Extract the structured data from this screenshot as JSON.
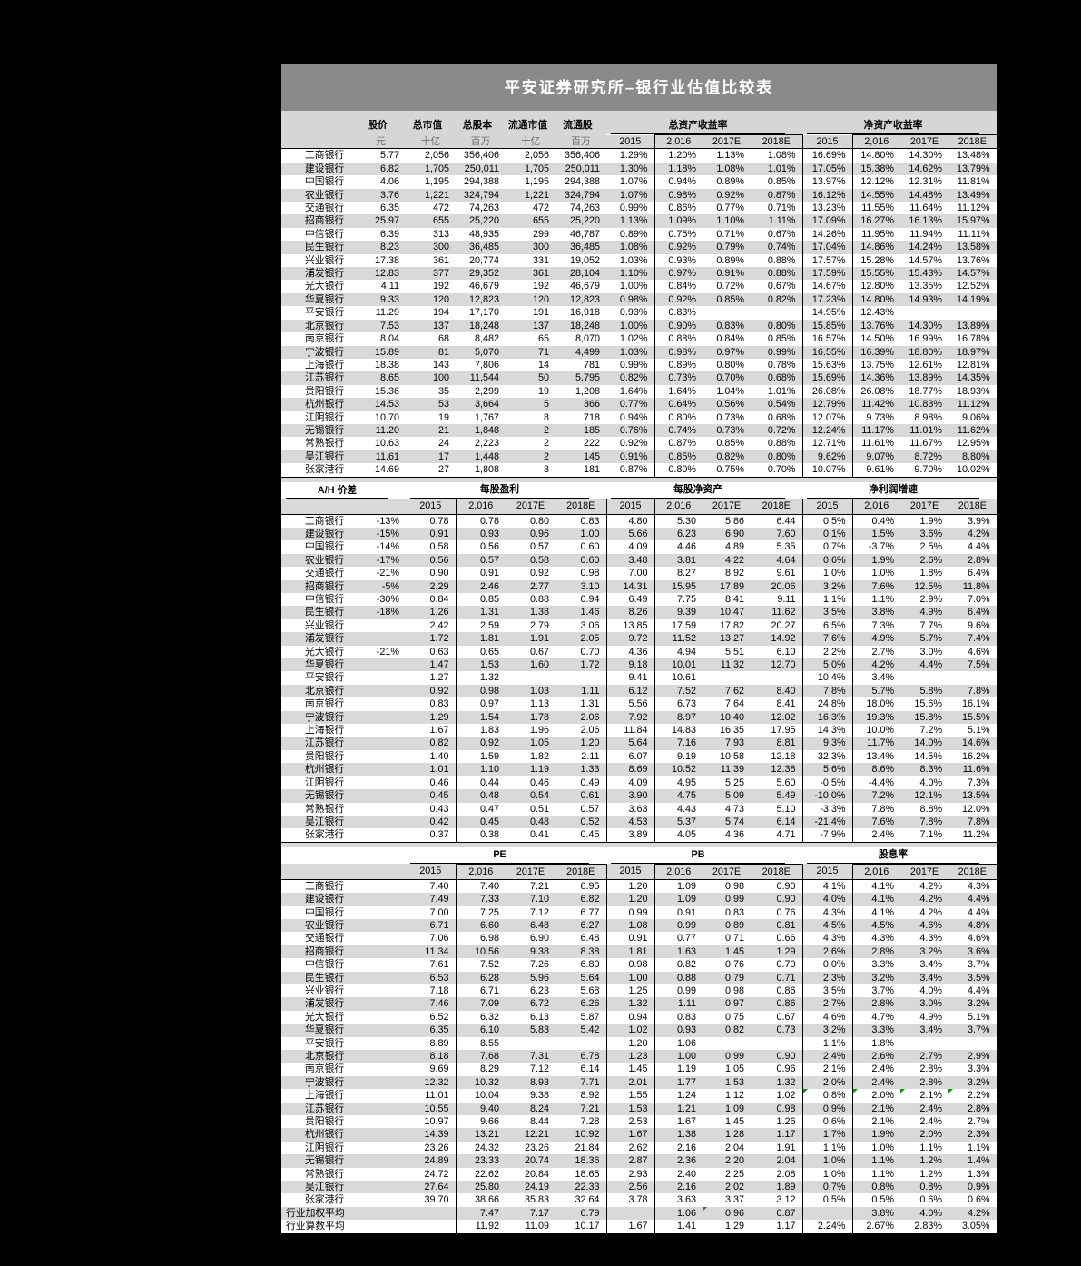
{
  "title": "平安证券研究所–银行业估值比较表",
  "years": [
    "2015",
    "2,016",
    "2017E",
    "2018E"
  ],
  "colors": {
    "title_bar": "#8a8a8a",
    "header_band": "#d6d6d6",
    "alt_row": "#d9d9d9",
    "frame": "#000000",
    "flag_green": "#1e8a1e"
  },
  "section1": {
    "col_headers": [
      "股价",
      "总市值",
      "总股本",
      "流通市值",
      "流通股"
    ],
    "units": [
      "元",
      "十亿",
      "百万",
      "十亿",
      "百万"
    ],
    "groups": [
      "总资产收益率",
      "净资产收益率"
    ],
    "rows": [
      [
        "工商银行",
        "5.77",
        "2,056",
        "356,406",
        "2,056",
        "356,406",
        "1.29%",
        "1.20%",
        "1.13%",
        "1.08%",
        "16.69%",
        "14.80%",
        "14.30%",
        "13.48%"
      ],
      [
        "建设银行",
        "6.82",
        "1,705",
        "250,011",
        "1,705",
        "250,011",
        "1.30%",
        "1.18%",
        "1.08%",
        "1.01%",
        "17.05%",
        "15.38%",
        "14.62%",
        "13.79%"
      ],
      [
        "中国银行",
        "4.06",
        "1,195",
        "294,388",
        "1,195",
        "294,388",
        "1.07%",
        "0.94%",
        "0.89%",
        "0.85%",
        "13.97%",
        "12.12%",
        "12.31%",
        "11.81%"
      ],
      [
        "农业银行",
        "3.76",
        "1,221",
        "324,794",
        "1,221",
        "324,794",
        "1.07%",
        "0.98%",
        "0.92%",
        "0.87%",
        "16.12%",
        "14.55%",
        "14.48%",
        "13.49%"
      ],
      [
        "交通银行",
        "6.35",
        "472",
        "74,263",
        "472",
        "74,263",
        "0.99%",
        "0.86%",
        "0.77%",
        "0.71%",
        "13.23%",
        "11.55%",
        "11.64%",
        "11.12%"
      ],
      [
        "招商银行",
        "25.97",
        "655",
        "25,220",
        "655",
        "25,220",
        "1.13%",
        "1.09%",
        "1.10%",
        "1.11%",
        "17.09%",
        "16.27%",
        "16.13%",
        "15.97%"
      ],
      [
        "中信银行",
        "6.39",
        "313",
        "48,935",
        "299",
        "46,787",
        "0.89%",
        "0.75%",
        "0.71%",
        "0.67%",
        "14.26%",
        "11.95%",
        "11.94%",
        "11.11%"
      ],
      [
        "民生银行",
        "8.23",
        "300",
        "36,485",
        "300",
        "36,485",
        "1.08%",
        "0.92%",
        "0.79%",
        "0.74%",
        "17.04%",
        "14.86%",
        "14.24%",
        "13.58%"
      ],
      [
        "兴业银行",
        "17.38",
        "361",
        "20,774",
        "331",
        "19,052",
        "1.03%",
        "0.93%",
        "0.89%",
        "0.88%",
        "17.57%",
        "15.28%",
        "14.57%",
        "13.76%"
      ],
      [
        "浦发银行",
        "12.83",
        "377",
        "29,352",
        "361",
        "28,104",
        "1.10%",
        "0.97%",
        "0.91%",
        "0.88%",
        "17.59%",
        "15.55%",
        "15.43%",
        "14.57%"
      ],
      [
        "光大银行",
        "4.11",
        "192",
        "46,679",
        "192",
        "46,679",
        "1.00%",
        "0.84%",
        "0.72%",
        "0.67%",
        "14.67%",
        "12.80%",
        "13.35%",
        "12.52%"
      ],
      [
        "华夏银行",
        "9.33",
        "120",
        "12,823",
        "120",
        "12,823",
        "0.98%",
        "0.92%",
        "0.85%",
        "0.82%",
        "17.23%",
        "14.80%",
        "14.93%",
        "14.19%"
      ],
      [
        "平安银行",
        "11.29",
        "194",
        "17,170",
        "191",
        "16,918",
        "0.93%",
        "0.83%",
        "",
        "",
        "14.95%",
        "12.43%",
        "",
        ""
      ],
      [
        "北京银行",
        "7.53",
        "137",
        "18,248",
        "137",
        "18,248",
        "1.00%",
        "0.90%",
        "0.83%",
        "0.80%",
        "15.85%",
        "13.76%",
        "14.30%",
        "13.89%"
      ],
      [
        "南京银行",
        "8.04",
        "68",
        "8,482",
        "65",
        "8,070",
        "1.02%",
        "0.88%",
        "0.84%",
        "0.85%",
        "16.57%",
        "14.50%",
        "16.99%",
        "16.78%"
      ],
      [
        "宁波银行",
        "15.89",
        "81",
        "5,070",
        "71",
        "4,499",
        "1.03%",
        "0.98%",
        "0.97%",
        "0.99%",
        "16.55%",
        "16.39%",
        "18.80%",
        "18.97%"
      ],
      [
        "上海银行",
        "18.38",
        "143",
        "7,806",
        "14",
        "781",
        "0.99%",
        "0.89%",
        "0.80%",
        "0.78%",
        "15.63%",
        "13.75%",
        "12.61%",
        "12.81%"
      ],
      [
        "江苏银行",
        "8.65",
        "100",
        "11,544",
        "50",
        "5,795",
        "0.82%",
        "0.73%",
        "0.70%",
        "0.68%",
        "15.69%",
        "14.36%",
        "13.89%",
        "14.35%"
      ],
      [
        "贵阳银行",
        "15.36",
        "35",
        "2,299",
        "19",
        "1,208",
        "1.64%",
        "1.64%",
        "1.04%",
        "1.01%",
        "26.08%",
        "26.08%",
        "18.77%",
        "18.93%"
      ],
      [
        "杭州银行",
        "14.53",
        "53",
        "3,664",
        "5",
        "366",
        "0.77%",
        "0.64%",
        "0.56%",
        "0.54%",
        "12.79%",
        "11.42%",
        "10.83%",
        "11.12%"
      ],
      [
        "江阴银行",
        "10.70",
        "19",
        "1,767",
        "8",
        "718",
        "0.94%",
        "0.80%",
        "0.73%",
        "0.68%",
        "12.07%",
        "9.73%",
        "8.98%",
        "9.06%"
      ],
      [
        "无锡银行",
        "11.20",
        "21",
        "1,848",
        "2",
        "185",
        "0.76%",
        "0.74%",
        "0.73%",
        "0.72%",
        "12.24%",
        "11.17%",
        "11.01%",
        "11.62%"
      ],
      [
        "常熟银行",
        "10.63",
        "24",
        "2,223",
        "2",
        "222",
        "0.92%",
        "0.87%",
        "0.85%",
        "0.88%",
        "12.71%",
        "11.61%",
        "11.67%",
        "12.95%"
      ],
      [
        "吴江银行",
        "11.61",
        "17",
        "1,448",
        "2",
        "145",
        "0.91%",
        "0.85%",
        "0.82%",
        "0.80%",
        "9.62%",
        "9.07%",
        "8.72%",
        "8.80%"
      ],
      [
        "张家港行",
        "14.69",
        "27",
        "1,808",
        "3",
        "181",
        "0.87%",
        "0.80%",
        "0.75%",
        "0.70%",
        "10.07%",
        "9.61%",
        "9.70%",
        "10.02%"
      ]
    ]
  },
  "section2": {
    "groups": [
      "A/H 价差",
      "每股盈利",
      "每股净资产",
      "净利润增速"
    ],
    "rows": [
      [
        "工商银行",
        "-13%",
        "0.78",
        "0.78",
        "0.80",
        "0.83",
        "4.80",
        "5.30",
        "5.86",
        "6.44",
        "0.5%",
        "0.4%",
        "1.9%",
        "3.9%"
      ],
      [
        "建设银行",
        "-15%",
        "0.91",
        "0.93",
        "0.96",
        "1.00",
        "5.66",
        "6.23",
        "6.90",
        "7.60",
        "0.1%",
        "1.5%",
        "3.6%",
        "4.2%"
      ],
      [
        "中国银行",
        "-14%",
        "0.58",
        "0.56",
        "0.57",
        "0.60",
        "4.09",
        "4.46",
        "4.89",
        "5.35",
        "0.7%",
        "-3.7%",
        "2.5%",
        "4.4%"
      ],
      [
        "农业银行",
        "-17%",
        "0.56",
        "0.57",
        "0.58",
        "0.60",
        "3.48",
        "3.81",
        "4.22",
        "4.64",
        "0.6%",
        "1.9%",
        "2.6%",
        "2.8%"
      ],
      [
        "交通银行",
        "-21%",
        "0.90",
        "0.91",
        "0.92",
        "0.98",
        "7.00",
        "8.27",
        "8.92",
        "9.61",
        "1.0%",
        "1.0%",
        "1.8%",
        "6.4%"
      ],
      [
        "招商银行",
        "-5%",
        "2.29",
        "2.46",
        "2.77",
        "3.10",
        "14.31",
        "15.95",
        "17.89",
        "20.06",
        "3.2%",
        "7.6%",
        "12.5%",
        "11.8%"
      ],
      [
        "中信银行",
        "-30%",
        "0.84",
        "0.85",
        "0.88",
        "0.94",
        "6.49",
        "7.75",
        "8.41",
        "9.11",
        "1.1%",
        "1.1%",
        "2.9%",
        "7.0%"
      ],
      [
        "民生银行",
        "-18%",
        "1.26",
        "1.31",
        "1.38",
        "1.46",
        "8.26",
        "9.39",
        "10.47",
        "11.62",
        "3.5%",
        "3.8%",
        "4.9%",
        "6.4%"
      ],
      [
        "兴业银行",
        "",
        "2.42",
        "2.59",
        "2.79",
        "3.06",
        "13.85",
        "17.59",
        "17.82",
        "20.27",
        "6.5%",
        "7.3%",
        "7.7%",
        "9.6%"
      ],
      [
        "浦发银行",
        "",
        "1.72",
        "1.81",
        "1.91",
        "2.05",
        "9.72",
        "11.52",
        "13.27",
        "14.92",
        "7.6%",
        "4.9%",
        "5.7%",
        "7.4%"
      ],
      [
        "光大银行",
        "-21%",
        "0.63",
        "0.65",
        "0.67",
        "0.70",
        "4.36",
        "4.94",
        "5.51",
        "6.10",
        "2.2%",
        "2.7%",
        "3.0%",
        "4.6%"
      ],
      [
        "华夏银行",
        "",
        "1.47",
        "1.53",
        "1.60",
        "1.72",
        "9.18",
        "10.01",
        "11.32",
        "12.70",
        "5.0%",
        "4.2%",
        "4.4%",
        "7.5%"
      ],
      [
        "平安银行",
        "",
        "1.27",
        "1.32",
        "",
        "",
        "9.41",
        "10.61",
        "",
        "",
        "10.4%",
        "3.4%",
        "",
        ""
      ],
      [
        "北京银行",
        "",
        "0.92",
        "0.98",
        "1.03",
        "1.11",
        "6.12",
        "7.52",
        "7.62",
        "8.40",
        "7.8%",
        "5.7%",
        "5.8%",
        "7.8%"
      ],
      [
        "南京银行",
        "",
        "0.83",
        "0.97",
        "1.13",
        "1.31",
        "5.56",
        "6.73",
        "7.64",
        "8.41",
        "24.8%",
        "18.0%",
        "15.6%",
        "16.1%"
      ],
      [
        "宁波银行",
        "",
        "1.29",
        "1.54",
        "1.78",
        "2.06",
        "7.92",
        "8.97",
        "10.40",
        "12.02",
        "16.3%",
        "19.3%",
        "15.8%",
        "15.5%"
      ],
      [
        "上海银行",
        "",
        "1.67",
        "1.83",
        "1.96",
        "2.06",
        "11.84",
        "14.83",
        "16.35",
        "17.95",
        "14.3%",
        "10.0%",
        "7.2%",
        "5.1%"
      ],
      [
        "江苏银行",
        "",
        "0.82",
        "0.92",
        "1.05",
        "1.20",
        "5.64",
        "7.16",
        "7.93",
        "8.81",
        "9.3%",
        "11.7%",
        "14.0%",
        "14.6%"
      ],
      [
        "贵阳银行",
        "",
        "1.40",
        "1.59",
        "1.82",
        "2.11",
        "6.07",
        "9.19",
        "10.58",
        "12.18",
        "32.3%",
        "13.4%",
        "14.5%",
        "16.2%"
      ],
      [
        "杭州银行",
        "",
        "1.01",
        "1.10",
        "1.19",
        "1.33",
        "8.69",
        "10.52",
        "11.39",
        "12.38",
        "5.6%",
        "8.6%",
        "8.3%",
        "11.6%"
      ],
      [
        "江阴银行",
        "",
        "0.46",
        "0.44",
        "0.46",
        "0.49",
        "4.09",
        "4.95",
        "5.25",
        "5.60",
        "-0.5%",
        "-4.4%",
        "4.0%",
        "7.3%"
      ],
      [
        "无锡银行",
        "",
        "0.45",
        "0.48",
        "0.54",
        "0.61",
        "3.90",
        "4.75",
        "5.09",
        "5.49",
        "-10.0%",
        "7.2%",
        "12.1%",
        "13.5%"
      ],
      [
        "常熟银行",
        "",
        "0.43",
        "0.47",
        "0.51",
        "0.57",
        "3.63",
        "4.43",
        "4.73",
        "5.10",
        "-3.3%",
        "7.8%",
        "8.8%",
        "12.0%"
      ],
      [
        "吴江银行",
        "",
        "0.42",
        "0.45",
        "0.48",
        "0.52",
        "4.53",
        "5.37",
        "5.74",
        "6.14",
        "-21.4%",
        "7.6%",
        "7.8%",
        "7.8%"
      ],
      [
        "张家港行",
        "",
        "0.37",
        "0.38",
        "0.41",
        "0.45",
        "3.89",
        "4.05",
        "4.36",
        "4.71",
        "-7.9%",
        "2.4%",
        "7.1%",
        "11.2%"
      ]
    ]
  },
  "section3": {
    "groups": [
      "PE",
      "PB",
      "股息率"
    ],
    "flags": [
      {
        "row": 16,
        "cols": [
          10,
          11,
          12,
          13
        ]
      },
      {
        "row": 25,
        "cols": [
          8
        ]
      }
    ],
    "rows": [
      [
        "工商银行",
        "",
        "7.40",
        "7.40",
        "7.21",
        "6.95",
        "1.20",
        "1.09",
        "0.98",
        "0.90",
        "4.1%",
        "4.1%",
        "4.2%",
        "4.3%"
      ],
      [
        "建设银行",
        "",
        "7.49",
        "7.33",
        "7.10",
        "6.82",
        "1.20",
        "1.09",
        "0.99",
        "0.90",
        "4.0%",
        "4.1%",
        "4.2%",
        "4.4%"
      ],
      [
        "中国银行",
        "",
        "7.00",
        "7.25",
        "7.12",
        "6.77",
        "0.99",
        "0.91",
        "0.83",
        "0.76",
        "4.3%",
        "4.1%",
        "4.2%",
        "4.4%"
      ],
      [
        "农业银行",
        "",
        "6.71",
        "6.60",
        "6.48",
        "6.27",
        "1.08",
        "0.99",
        "0.89",
        "0.81",
        "4.5%",
        "4.5%",
        "4.6%",
        "4.8%"
      ],
      [
        "交通银行",
        "",
        "7.06",
        "6.98",
        "6.90",
        "6.48",
        "0.91",
        "0.77",
        "0.71",
        "0.66",
        "4.3%",
        "4.3%",
        "4.3%",
        "4.6%"
      ],
      [
        "招商银行",
        "",
        "11.34",
        "10.56",
        "9.38",
        "8.38",
        "1.81",
        "1.63",
        "1.45",
        "1.29",
        "2.6%",
        "2.8%",
        "3.2%",
        "3.6%"
      ],
      [
        "中信银行",
        "",
        "7.61",
        "7.52",
        "7.26",
        "6.80",
        "0.98",
        "0.82",
        "0.76",
        "0.70",
        "0.0%",
        "3.3%",
        "3.4%",
        "3.7%"
      ],
      [
        "民生银行",
        "",
        "6.53",
        "6.28",
        "5.96",
        "5.64",
        "1.00",
        "0.88",
        "0.79",
        "0.71",
        "2.3%",
        "3.2%",
        "3.4%",
        "3.5%"
      ],
      [
        "兴业银行",
        "",
        "7.18",
        "6.71",
        "6.23",
        "5.68",
        "1.25",
        "0.99",
        "0.98",
        "0.86",
        "3.5%",
        "3.7%",
        "4.0%",
        "4.4%"
      ],
      [
        "浦发银行",
        "",
        "7.46",
        "7.09",
        "6.72",
        "6.26",
        "1.32",
        "1.11",
        "0.97",
        "0.86",
        "2.7%",
        "2.8%",
        "3.0%",
        "3.2%"
      ],
      [
        "光大银行",
        "",
        "6.52",
        "6.32",
        "6.13",
        "5.87",
        "0.94",
        "0.83",
        "0.75",
        "0.67",
        "4.6%",
        "4.7%",
        "4.9%",
        "5.1%"
      ],
      [
        "华夏银行",
        "",
        "6.35",
        "6.10",
        "5.83",
        "5.42",
        "1.02",
        "0.93",
        "0.82",
        "0.73",
        "3.2%",
        "3.3%",
        "3.4%",
        "3.7%"
      ],
      [
        "平安银行",
        "",
        "8.89",
        "8.55",
        "",
        "",
        "1.20",
        "1.06",
        "",
        "",
        "1.1%",
        "1.8%",
        "",
        ""
      ],
      [
        "北京银行",
        "",
        "8.18",
        "7.68",
        "7.31",
        "6.78",
        "1.23",
        "1.00",
        "0.99",
        "0.90",
        "2.4%",
        "2.6%",
        "2.7%",
        "2.9%"
      ],
      [
        "南京银行",
        "",
        "9.69",
        "8.29",
        "7.12",
        "6.14",
        "1.45",
        "1.19",
        "1.05",
        "0.96",
        "2.1%",
        "2.4%",
        "2.8%",
        "3.3%"
      ],
      [
        "宁波银行",
        "",
        "12.32",
        "10.32",
        "8.93",
        "7.71",
        "2.01",
        "1.77",
        "1.53",
        "1.32",
        "2.0%",
        "2.4%",
        "2.8%",
        "3.2%"
      ],
      [
        "上海银行",
        "",
        "11.01",
        "10.04",
        "9.38",
        "8.92",
        "1.55",
        "1.24",
        "1.12",
        "1.02",
        "0.8%",
        "2.0%",
        "2.1%",
        "2.2%"
      ],
      [
        "江苏银行",
        "",
        "10.55",
        "9.40",
        "8.24",
        "7.21",
        "1.53",
        "1.21",
        "1.09",
        "0.98",
        "0.9%",
        "2.1%",
        "2.4%",
        "2.8%"
      ],
      [
        "贵阳银行",
        "",
        "10.97",
        "9.66",
        "8.44",
        "7.28",
        "2.53",
        "1.67",
        "1.45",
        "1.26",
        "0.6%",
        "2.1%",
        "2.4%",
        "2.7%"
      ],
      [
        "杭州银行",
        "",
        "14.39",
        "13.21",
        "12.21",
        "10.92",
        "1.67",
        "1.38",
        "1.28",
        "1.17",
        "1.7%",
        "1.9%",
        "2.0%",
        "2.3%"
      ],
      [
        "江阴银行",
        "",
        "23.26",
        "24.32",
        "23.26",
        "21.84",
        "2.62",
        "2.16",
        "2.04",
        "1.91",
        "1.1%",
        "1.0%",
        "1.1%",
        "1.1%"
      ],
      [
        "无锡银行",
        "",
        "24.89",
        "23.33",
        "20.74",
        "18.36",
        "2.87",
        "2.36",
        "2.20",
        "2.04",
        "1.0%",
        "1.1%",
        "1.2%",
        "1.4%"
      ],
      [
        "常熟银行",
        "",
        "24.72",
        "22.62",
        "20.84",
        "18.65",
        "2.93",
        "2.40",
        "2.25",
        "2.08",
        "1.0%",
        "1.1%",
        "1.2%",
        "1.3%"
      ],
      [
        "吴江银行",
        "",
        "27.64",
        "25.80",
        "24.19",
        "22.33",
        "2.56",
        "2.16",
        "2.02",
        "1.89",
        "0.7%",
        "0.8%",
        "0.8%",
        "0.9%"
      ],
      [
        "张家港行",
        "",
        "39.70",
        "38.66",
        "35.83",
        "32.64",
        "3.78",
        "3.63",
        "3.37",
        "3.12",
        "0.5%",
        "0.5%",
        "0.6%",
        "0.6%"
      ],
      [
        "行业加权平均",
        "",
        "",
        "7.47",
        "7.17",
        "6.79",
        "",
        "1.06",
        "0.96",
        "0.87",
        "",
        "3.8%",
        "4.0%",
        "4.2%"
      ],
      [
        "行业算数平均",
        "",
        "",
        "11.92",
        "11.09",
        "10.17",
        "1.67",
        "1.41",
        "1.29",
        "1.17",
        "2.24%",
        "2.67%",
        "2.83%",
        "3.05%"
      ]
    ]
  }
}
